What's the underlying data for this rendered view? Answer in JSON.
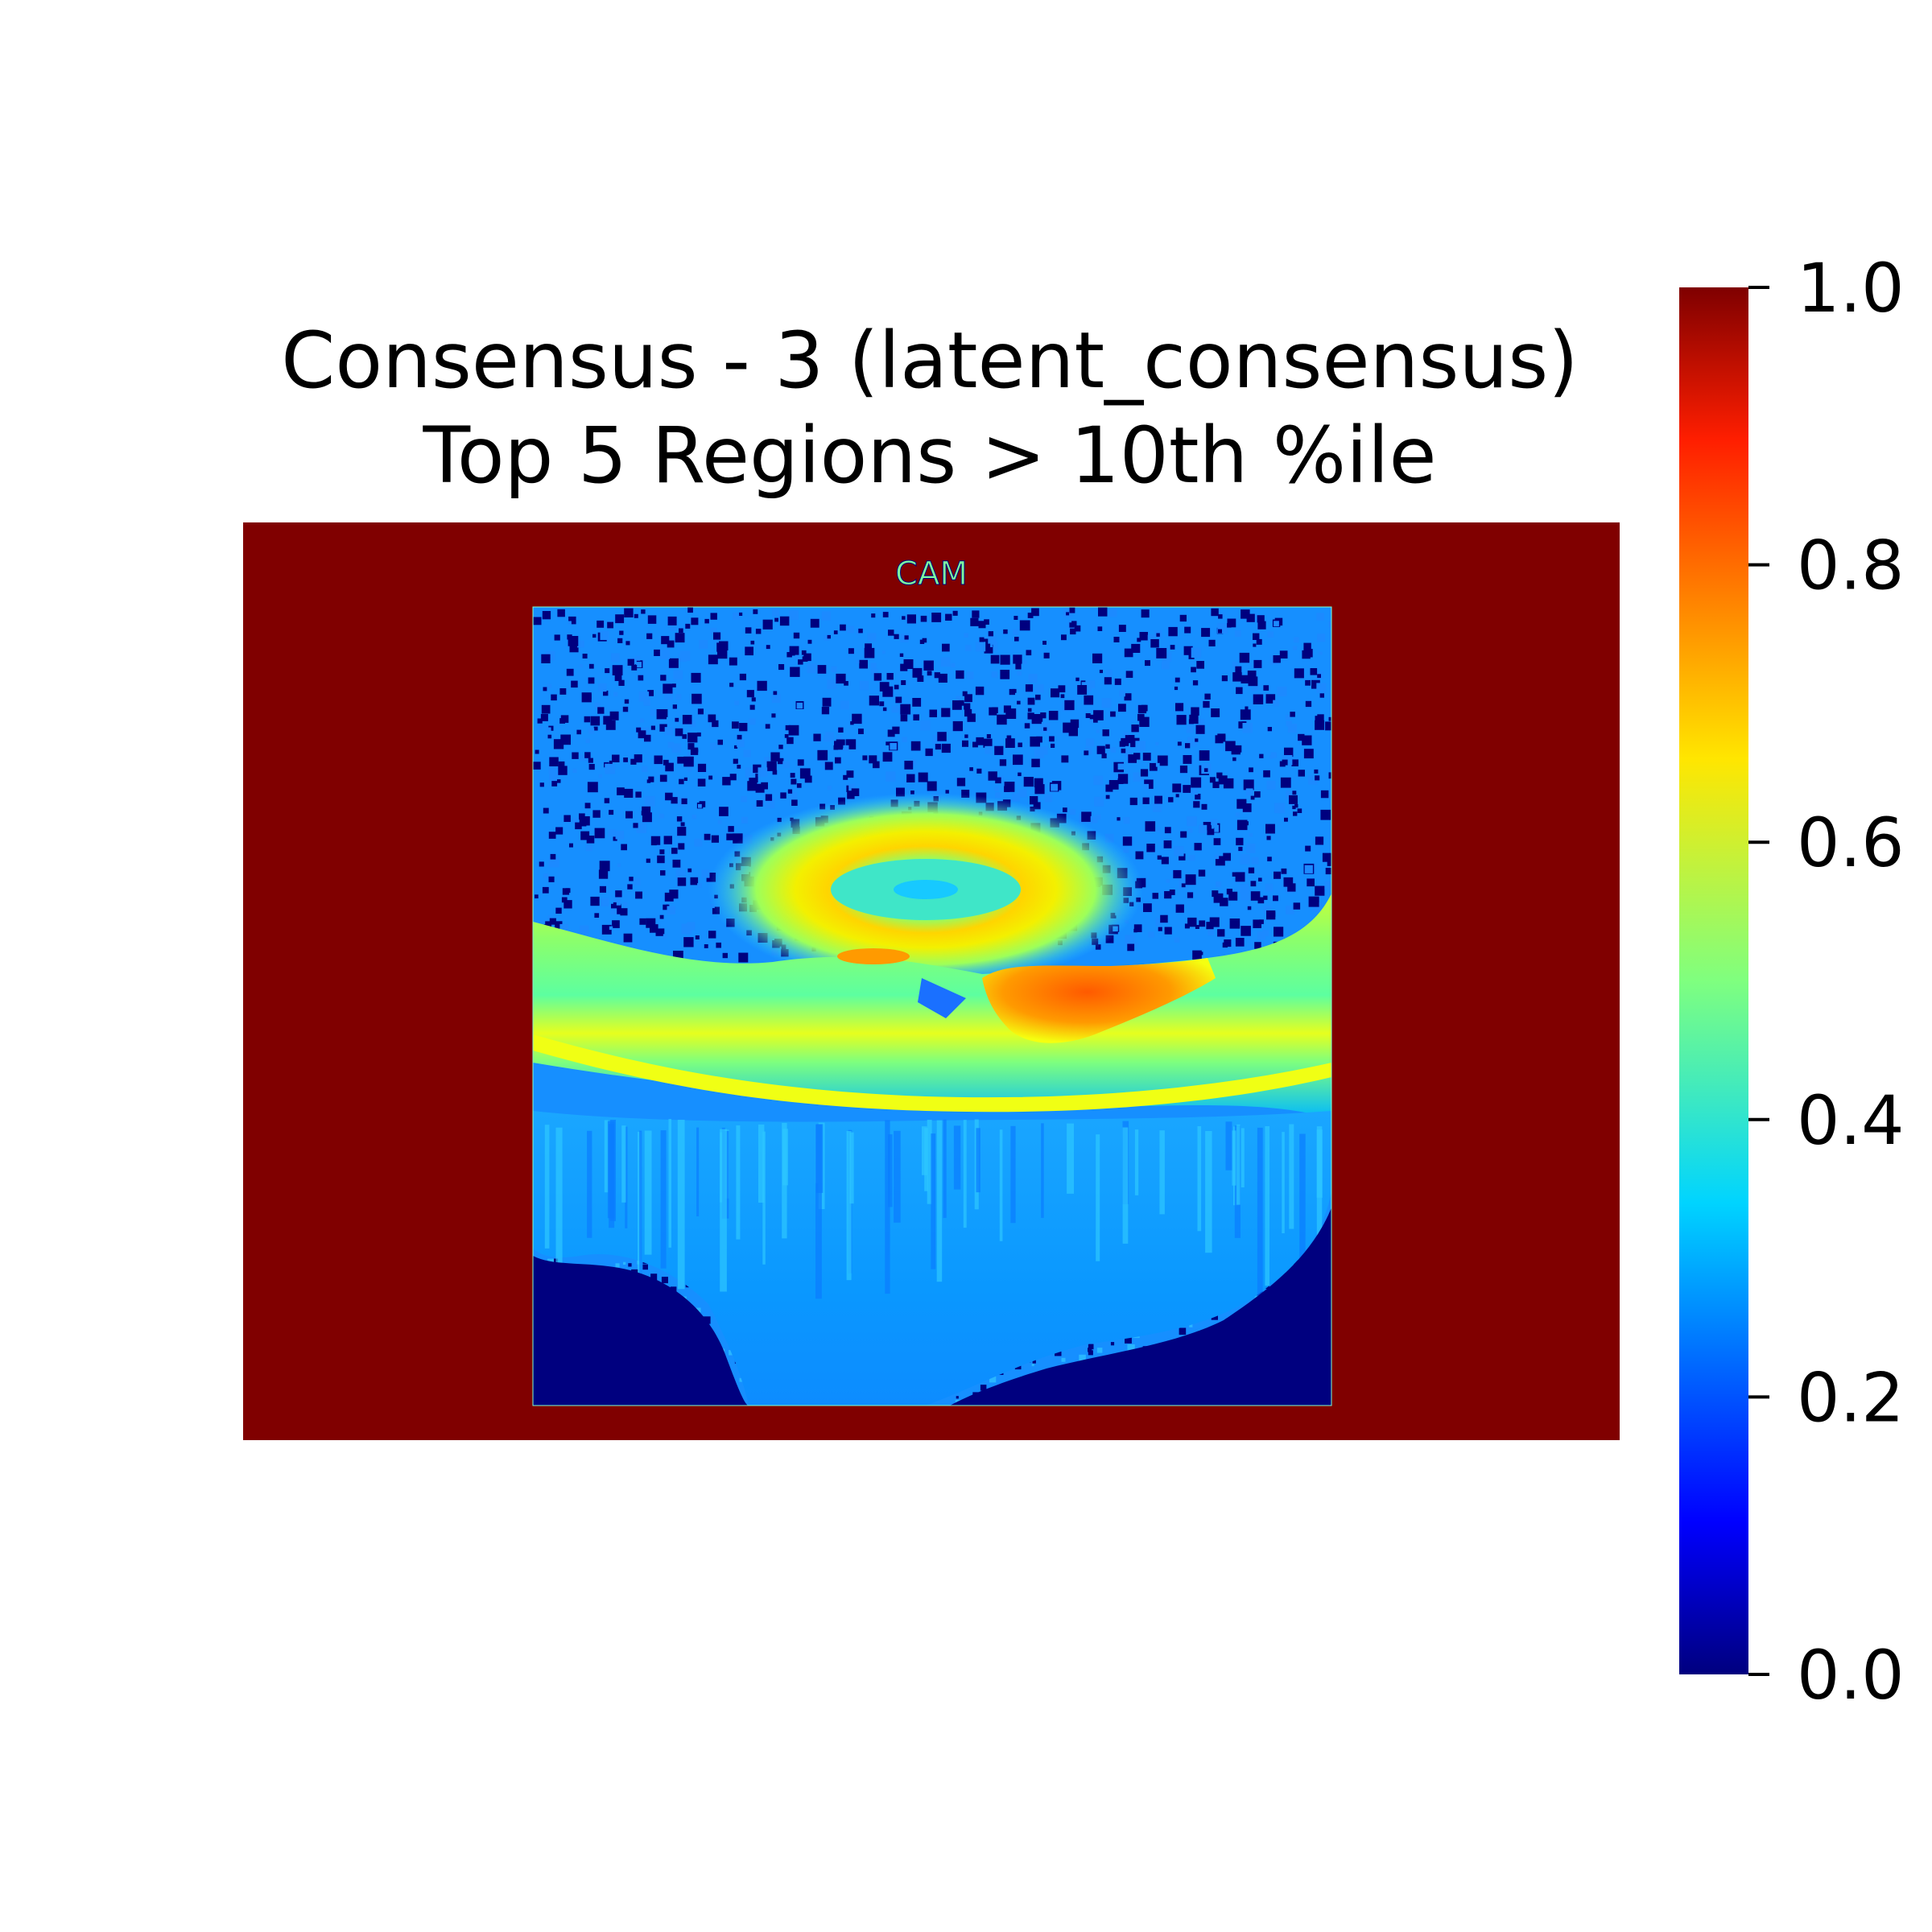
{
  "chart_data": {
    "type": "heatmap",
    "title": "Consensus - 3 (latent_consensus)",
    "subtitle": "Top 5 Regions > 10th %ile",
    "inset_label": "CAM",
    "colormap": "jet",
    "colorbar": {
      "min": 0.0,
      "max": 1.0,
      "ticks": [
        0.0,
        0.2,
        0.4,
        0.6,
        0.8,
        1.0
      ],
      "tick_labels": [
        "0.0",
        "0.2",
        "0.4",
        "0.6",
        "0.8",
        "1.0"
      ]
    },
    "background_value": 1.0,
    "grid": false,
    "legend": "none",
    "regions": [
      {
        "kind": "noise-field",
        "value_low": 0.0,
        "value_high": 0.28
      },
      {
        "kind": "ring",
        "value": 0.62
      },
      {
        "kind": "retinal-bands",
        "value": 0.52
      },
      {
        "kind": "hotspot",
        "value": 0.85
      },
      {
        "kind": "lower-tissue",
        "value": 0.28
      },
      {
        "kind": "empty",
        "value": 0.0
      }
    ]
  },
  "colors": {
    "background_frame": "#800000",
    "low": "#00007f",
    "high": "#7f0000"
  }
}
